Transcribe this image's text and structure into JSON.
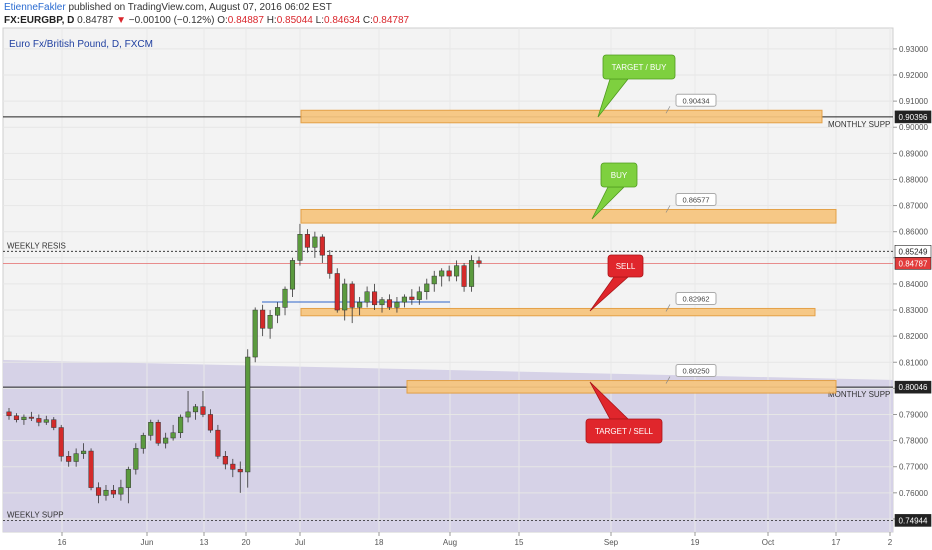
{
  "header": {
    "author": "EtienneFakler",
    "published": "published on TradingView.com, August 07, 2016 06:02 EST",
    "symbol": "FX:EURGBP, D",
    "last": "0.84787",
    "change": "−0.00100 (−0.12%)",
    "o_label": "O:",
    "o_value": "0.84887",
    "h_label": "H:",
    "h_value": "0.85044",
    "l_label": "L:",
    "l_value": "0.84634",
    "c_label": "C:",
    "c_value": "0.84787"
  },
  "colors": {
    "up": "#5b9a3e",
    "down": "#d42a2a",
    "zone": "#f7c57d",
    "zone_border": "#e39b3a",
    "shade": "#d4d0e6",
    "badge_green": "#7ed03f",
    "badge_red": "#e0262c"
  },
  "chart_data": {
    "type": "candlestick",
    "title": "Euro Fx/British Pound, D, FXCM",
    "ylim": [
      0.745,
      0.938
    ],
    "y_ticks": [
      "0.93000",
      "0.92000",
      "0.91000",
      "0.90000",
      "0.89000",
      "0.88000",
      "0.87000",
      "0.86000",
      "0.85000",
      "0.84000",
      "0.83000",
      "0.82000",
      "0.81000",
      "0.80000",
      "0.79000",
      "0.78000",
      "0.77000",
      "0.76000",
      "0.75000"
    ],
    "x_ticks": [
      "16",
      "Jun",
      "13",
      "20",
      "Jul",
      "18",
      "Aug",
      "15",
      "Sep",
      "19",
      "Oct",
      "17",
      "2"
    ],
    "candles": [
      {
        "o": 0.791,
        "h": 0.7925,
        "l": 0.788,
        "c": 0.7895
      },
      {
        "o": 0.7895,
        "h": 0.7905,
        "l": 0.787,
        "c": 0.788
      },
      {
        "o": 0.788,
        "h": 0.79,
        "l": 0.786,
        "c": 0.789
      },
      {
        "o": 0.789,
        "h": 0.791,
        "l": 0.7875,
        "c": 0.7885
      },
      {
        "o": 0.7885,
        "h": 0.79,
        "l": 0.7855,
        "c": 0.787
      },
      {
        "o": 0.787,
        "h": 0.7895,
        "l": 0.786,
        "c": 0.788
      },
      {
        "o": 0.788,
        "h": 0.789,
        "l": 0.784,
        "c": 0.785
      },
      {
        "o": 0.785,
        "h": 0.786,
        "l": 0.772,
        "c": 0.774
      },
      {
        "o": 0.774,
        "h": 0.776,
        "l": 0.77,
        "c": 0.772
      },
      {
        "o": 0.772,
        "h": 0.777,
        "l": 0.77,
        "c": 0.775
      },
      {
        "o": 0.775,
        "h": 0.779,
        "l": 0.773,
        "c": 0.776
      },
      {
        "o": 0.776,
        "h": 0.777,
        "l": 0.761,
        "c": 0.762
      },
      {
        "o": 0.762,
        "h": 0.764,
        "l": 0.756,
        "c": 0.759
      },
      {
        "o": 0.759,
        "h": 0.763,
        "l": 0.757,
        "c": 0.761
      },
      {
        "o": 0.761,
        "h": 0.763,
        "l": 0.758,
        "c": 0.7595
      },
      {
        "o": 0.7595,
        "h": 0.765,
        "l": 0.757,
        "c": 0.762
      },
      {
        "o": 0.762,
        "h": 0.77,
        "l": 0.756,
        "c": 0.769
      },
      {
        "o": 0.769,
        "h": 0.779,
        "l": 0.767,
        "c": 0.777
      },
      {
        "o": 0.777,
        "h": 0.783,
        "l": 0.775,
        "c": 0.782
      },
      {
        "o": 0.782,
        "h": 0.788,
        "l": 0.78,
        "c": 0.787
      },
      {
        "o": 0.787,
        "h": 0.788,
        "l": 0.778,
        "c": 0.779
      },
      {
        "o": 0.779,
        "h": 0.783,
        "l": 0.777,
        "c": 0.781
      },
      {
        "o": 0.781,
        "h": 0.786,
        "l": 0.78,
        "c": 0.783
      },
      {
        "o": 0.783,
        "h": 0.79,
        "l": 0.781,
        "c": 0.789
      },
      {
        "o": 0.789,
        "h": 0.799,
        "l": 0.787,
        "c": 0.791
      },
      {
        "o": 0.791,
        "h": 0.794,
        "l": 0.788,
        "c": 0.793
      },
      {
        "o": 0.793,
        "h": 0.799,
        "l": 0.789,
        "c": 0.79
      },
      {
        "o": 0.79,
        "h": 0.792,
        "l": 0.783,
        "c": 0.784
      },
      {
        "o": 0.784,
        "h": 0.786,
        "l": 0.773,
        "c": 0.774
      },
      {
        "o": 0.774,
        "h": 0.776,
        "l": 0.769,
        "c": 0.771
      },
      {
        "o": 0.771,
        "h": 0.773,
        "l": 0.766,
        "c": 0.769
      },
      {
        "o": 0.769,
        "h": 0.772,
        "l": 0.76,
        "c": 0.768
      },
      {
        "o": 0.768,
        "h": 0.815,
        "l": 0.762,
        "c": 0.812
      },
      {
        "o": 0.812,
        "h": 0.831,
        "l": 0.81,
        "c": 0.83
      },
      {
        "o": 0.83,
        "h": 0.832,
        "l": 0.82,
        "c": 0.823
      },
      {
        "o": 0.823,
        "h": 0.83,
        "l": 0.819,
        "c": 0.828
      },
      {
        "o": 0.828,
        "h": 0.833,
        "l": 0.825,
        "c": 0.831
      },
      {
        "o": 0.831,
        "h": 0.839,
        "l": 0.828,
        "c": 0.838
      },
      {
        "o": 0.838,
        "h": 0.85,
        "l": 0.835,
        "c": 0.849
      },
      {
        "o": 0.849,
        "h": 0.863,
        "l": 0.847,
        "c": 0.859
      },
      {
        "o": 0.859,
        "h": 0.861,
        "l": 0.852,
        "c": 0.854
      },
      {
        "o": 0.854,
        "h": 0.86,
        "l": 0.85,
        "c": 0.858
      },
      {
        "o": 0.858,
        "h": 0.859,
        "l": 0.848,
        "c": 0.851
      },
      {
        "o": 0.851,
        "h": 0.853,
        "l": 0.842,
        "c": 0.844
      },
      {
        "o": 0.844,
        "h": 0.846,
        "l": 0.829,
        "c": 0.83
      },
      {
        "o": 0.83,
        "h": 0.842,
        "l": 0.826,
        "c": 0.84
      },
      {
        "o": 0.84,
        "h": 0.841,
        "l": 0.825,
        "c": 0.831
      },
      {
        "o": 0.831,
        "h": 0.835,
        "l": 0.828,
        "c": 0.833
      },
      {
        "o": 0.833,
        "h": 0.839,
        "l": 0.831,
        "c": 0.837
      },
      {
        "o": 0.837,
        "h": 0.84,
        "l": 0.83,
        "c": 0.832
      },
      {
        "o": 0.832,
        "h": 0.835,
        "l": 0.829,
        "c": 0.834
      },
      {
        "o": 0.834,
        "h": 0.836,
        "l": 0.83,
        "c": 0.831
      },
      {
        "o": 0.831,
        "h": 0.835,
        "l": 0.829,
        "c": 0.833
      },
      {
        "o": 0.833,
        "h": 0.836,
        "l": 0.831,
        "c": 0.835
      },
      {
        "o": 0.835,
        "h": 0.838,
        "l": 0.832,
        "c": 0.834
      },
      {
        "o": 0.834,
        "h": 0.839,
        "l": 0.832,
        "c": 0.837
      },
      {
        "o": 0.837,
        "h": 0.842,
        "l": 0.834,
        "c": 0.84
      },
      {
        "o": 0.84,
        "h": 0.845,
        "l": 0.837,
        "c": 0.843
      },
      {
        "o": 0.843,
        "h": 0.846,
        "l": 0.839,
        "c": 0.845
      },
      {
        "o": 0.845,
        "h": 0.847,
        "l": 0.841,
        "c": 0.843
      },
      {
        "o": 0.843,
        "h": 0.849,
        "l": 0.841,
        "c": 0.847
      },
      {
        "o": 0.847,
        "h": 0.848,
        "l": 0.837,
        "c": 0.839
      },
      {
        "o": 0.839,
        "h": 0.851,
        "l": 0.837,
        "c": 0.849
      },
      {
        "o": 0.84887,
        "h": 0.85044,
        "l": 0.84634,
        "c": 0.84787
      }
    ],
    "price_labels": {
      "monthly_top": "0.90396",
      "weekly_resis": "0.85249",
      "last": "0.84787",
      "monthly_bottom": "0.80046",
      "weekly_supp": "0.74944"
    },
    "lines": [
      {
        "id": "monthly-top",
        "value": 0.90396,
        "label": "MONTHLY SUPP"
      },
      {
        "id": "weekly-resis",
        "value": 0.85249,
        "label": "WEEKLY RESIS"
      },
      {
        "id": "monthly-bottom",
        "value": 0.80046,
        "label": "MONTHLY SUPP"
      },
      {
        "id": "weekly-supp",
        "value": 0.74944,
        "label": "WEEKLY SUPP"
      }
    ],
    "zones": [
      {
        "id": "zone-top",
        "y1": 0.9017,
        "y2": 0.9065,
        "note": "0.90434"
      },
      {
        "id": "zone-buy",
        "y1": 0.8633,
        "y2": 0.8685,
        "note": "0.86577"
      },
      {
        "id": "zone-sell",
        "y1": 0.8278,
        "y2": 0.8306,
        "note": "0.82962"
      },
      {
        "id": "zone-bottom",
        "y1": 0.7982,
        "y2": 0.803,
        "note": "0.80250"
      }
    ],
    "callouts": [
      {
        "id": "target-buy",
        "text": "TARGET / BUY",
        "color": "green"
      },
      {
        "id": "buy",
        "text": "BUY",
        "color": "green"
      },
      {
        "id": "sell",
        "text": "SELL",
        "color": "red"
      },
      {
        "id": "target-sell",
        "text": "TARGET / SELL",
        "color": "red"
      }
    ]
  }
}
